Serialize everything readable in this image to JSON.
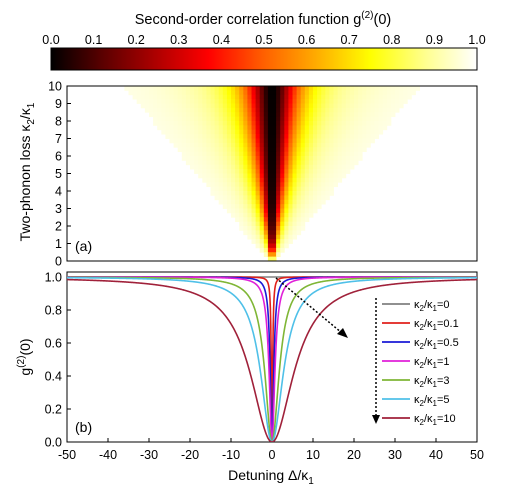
{
  "colorbar": {
    "title_main": "Second-order correlation function g",
    "title_sup": "(2)",
    "title_tail": "(0)",
    "ticks": [
      "0.0",
      "0.1",
      "0.2",
      "0.3",
      "0.4",
      "0.5",
      "0.6",
      "0.7",
      "0.8",
      "0.9",
      "1.0"
    ],
    "range": [
      0,
      1
    ],
    "colormap": "hot"
  },
  "panel_a": {
    "label": "(a)",
    "ylabel_main": "Two-phonon loss κ",
    "ylabel_sub1": "2",
    "ylabel_mid": "/κ",
    "ylabel_sub2": "1",
    "yticks": [
      "0",
      "1",
      "2",
      "3",
      "4",
      "5",
      "6",
      "7",
      "8",
      "9",
      "10"
    ]
  },
  "panel_b": {
    "label": "(b)",
    "ylabel_main": "g",
    "ylabel_sup": "(2)",
    "ylabel_tail": "(0)",
    "yticks": [
      "0.0",
      "0.2",
      "0.4",
      "0.6",
      "0.8",
      "1.0"
    ],
    "xticks": [
      "-50",
      "-40",
      "-30",
      "-20",
      "-10",
      "0",
      "10",
      "20",
      "30",
      "40",
      "50"
    ],
    "xlabel_main": "Detuning Δ/κ",
    "xlabel_sub": "1"
  },
  "chart_data": [
    {
      "type": "heatmap",
      "title": "Second-order correlation function g(2)(0)",
      "xlim": [
        -50,
        50
      ],
      "ylim": [
        0,
        10
      ],
      "xlabel": "Detuning Δ/κ1",
      "ylabel": "Two-phonon loss κ2/κ1",
      "color_range": [
        0,
        1
      ],
      "model": "g2(Δ, k) = Δ² / (Δ² + k²/2.75 + k/3), k = κ2/κ1; g2 = 1 where k = 0"
    },
    {
      "type": "line",
      "xlabel": "Detuning Δ/κ1",
      "ylabel": "g(2)(0)",
      "xlim": [
        -50,
        50
      ],
      "ylim": [
        0,
        1
      ],
      "x": [
        -50,
        -40,
        -30,
        -20,
        -15,
        -10,
        -5,
        -3,
        -2,
        -1,
        0,
        1,
        2,
        3,
        5,
        10,
        15,
        20,
        30,
        40,
        50
      ],
      "series": [
        {
          "name": "κ2/κ1=0",
          "color": "#808080",
          "values": [
            1,
            1,
            1,
            1,
            1,
            1,
            1,
            1,
            1,
            1,
            1,
            1,
            1,
            1,
            1,
            1,
            1,
            1,
            1,
            1,
            1
          ]
        },
        {
          "name": "κ2/κ1=0.1",
          "color": "#e0201b",
          "values": [
            1.0,
            1.0,
            1.0,
            1.0,
            1.0,
            1.0,
            1.0,
            1.0,
            1.0,
            0.96,
            0.84,
            0.96,
            1.0,
            1.0,
            1.0,
            1.0,
            1.0,
            1.0,
            1.0,
            1.0,
            1.0
          ]
        },
        {
          "name": "κ2/κ1=0.5",
          "color": "#1a1ad6",
          "values": [
            1.0,
            1.0,
            1.0,
            1.0,
            1.0,
            1.0,
            0.99,
            0.98,
            0.96,
            0.85,
            0.47,
            0.85,
            0.96,
            0.98,
            0.99,
            1.0,
            1.0,
            1.0,
            1.0,
            1.0,
            1.0
          ]
        },
        {
          "name": "κ2/κ1=1",
          "color": "#e020d8",
          "values": [
            1.0,
            1.0,
            1.0,
            1.0,
            1.0,
            0.99,
            0.98,
            0.96,
            0.91,
            0.74,
            0.27,
            0.74,
            0.91,
            0.96,
            0.98,
            0.99,
            1.0,
            1.0,
            1.0,
            1.0,
            1.0
          ]
        },
        {
          "name": "κ2/κ1=3",
          "color": "#7fb636",
          "values": [
            1.0,
            0.99,
            0.99,
            0.98,
            0.96,
            0.92,
            0.75,
            0.54,
            0.36,
            0.17,
            0.08,
            0.17,
            0.36,
            0.54,
            0.75,
            0.92,
            0.96,
            0.98,
            0.99,
            0.99,
            1.0
          ]
        },
        {
          "name": "κ2/κ1=5",
          "color": "#4fc0e8",
          "values": [
            0.99,
            0.99,
            0.98,
            0.95,
            0.92,
            0.83,
            0.53,
            0.29,
            0.16,
            0.07,
            0.04,
            0.07,
            0.16,
            0.29,
            0.53,
            0.83,
            0.92,
            0.95,
            0.98,
            0.99,
            0.99
          ]
        },
        {
          "name": "κ2/κ1=10",
          "color": "#a0213a",
          "values": [
            0.98,
            0.97,
            0.94,
            0.86,
            0.77,
            0.58,
            0.25,
            0.11,
            0.05,
            0.02,
            0.01,
            0.02,
            0.05,
            0.11,
            0.25,
            0.58,
            0.77,
            0.86,
            0.94,
            0.97,
            0.98
          ]
        }
      ],
      "legend_position": "right",
      "annotations": [
        "dotted arrows indicating increasing κ2/κ1"
      ]
    }
  ]
}
